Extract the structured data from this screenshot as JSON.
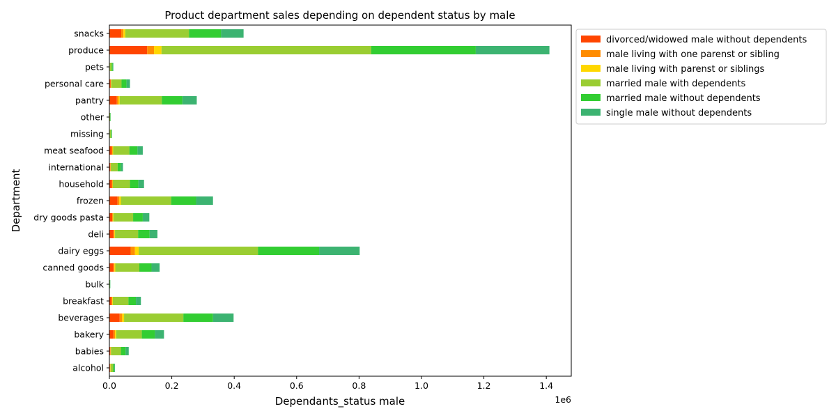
{
  "chart_data": {
    "type": "bar",
    "orientation": "horizontal",
    "stacked": true,
    "title": "Product department sales depending on dependent status by male",
    "xlabel": "Dependants_status male",
    "ylabel": "Department",
    "x_scale_label": "1e6",
    "xlim": [
      0,
      1.48
    ],
    "x_ticks": [
      0.0,
      0.2,
      0.4,
      0.6,
      0.8,
      1.0,
      1.2,
      1.4
    ],
    "x_tick_labels": [
      "0.0",
      "0.2",
      "0.4",
      "0.6",
      "0.8",
      "1.0",
      "1.2",
      "1.4"
    ],
    "grid": false,
    "legend_position": "outside-upper-right",
    "categories": [
      "alcohol",
      "babies",
      "bakery",
      "beverages",
      "breakfast",
      "bulk",
      "canned goods",
      "dairy eggs",
      "deli",
      "dry goods pasta",
      "frozen",
      "household",
      "international",
      "meat seafood",
      "missing",
      "other",
      "pantry",
      "personal care",
      "pets",
      "produce",
      "snacks"
    ],
    "series": [
      {
        "name": "divorced/widowed male without dependents",
        "color": "#ff4500",
        "values": [
          0.002,
          0.003,
          0.013,
          0.033,
          0.007,
          0.0005,
          0.013,
          0.068,
          0.013,
          0.009,
          0.026,
          0.008,
          0.003,
          0.008,
          0.001,
          0.0005,
          0.024,
          0.004,
          0.001,
          0.121,
          0.038
        ]
      },
      {
        "name": "male living with one parenst or sibling",
        "color": "#ff8c00",
        "values": [
          0.001,
          0.001,
          0.005,
          0.008,
          0.002,
          0.0001,
          0.003,
          0.014,
          0.003,
          0.002,
          0.006,
          0.002,
          0.001,
          0.002,
          0.0002,
          0.0001,
          0.005,
          0.001,
          0.0003,
          0.022,
          0.007
        ]
      },
      {
        "name": "male living with parenst or siblings",
        "color": "#ffd700",
        "values": [
          0.001,
          0.001,
          0.004,
          0.006,
          0.002,
          0.0001,
          0.003,
          0.012,
          0.002,
          0.002,
          0.005,
          0.001,
          0.0005,
          0.002,
          0.0002,
          0.0001,
          0.004,
          0.001,
          0.0003,
          0.024,
          0.006
        ]
      },
      {
        "name": "married male with dependents",
        "color": "#9acd32",
        "values": [
          0.008,
          0.032,
          0.082,
          0.19,
          0.05,
          0.001,
          0.077,
          0.382,
          0.074,
          0.063,
          0.161,
          0.055,
          0.022,
          0.052,
          0.004,
          0.002,
          0.135,
          0.033,
          0.006,
          0.672,
          0.204
        ]
      },
      {
        "name": "married male without dependents",
        "color": "#32cd32",
        "values": [
          0.004,
          0.015,
          0.042,
          0.095,
          0.024,
          0.001,
          0.039,
          0.196,
          0.037,
          0.031,
          0.08,
          0.027,
          0.01,
          0.026,
          0.002,
          0.001,
          0.066,
          0.016,
          0.003,
          0.335,
          0.103
        ]
      },
      {
        "name": "single male without dependents",
        "color": "#3cb371",
        "values": [
          0.002,
          0.01,
          0.029,
          0.066,
          0.016,
          0.0005,
          0.026,
          0.13,
          0.025,
          0.021,
          0.054,
          0.018,
          0.007,
          0.017,
          0.001,
          0.0005,
          0.046,
          0.011,
          0.002,
          0.236,
          0.072
        ]
      }
    ]
  }
}
